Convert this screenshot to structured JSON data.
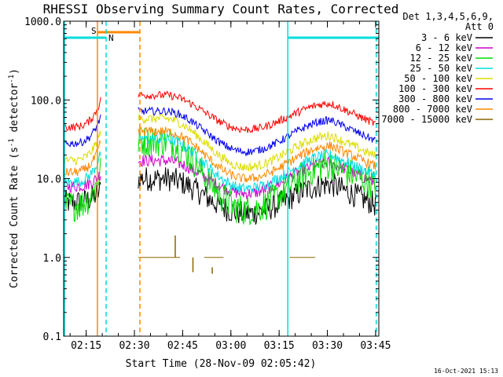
{
  "chart_data": {
    "type": "line",
    "title": "RHESSI Observing Summary Count Rates, Corrected",
    "xlabel": "Start Time (28-Nov-09 02:05:42)",
    "ylabel_main": "Corrected Count Rate (s",
    "ylabel_sup1": "-1",
    "ylabel_mid": " detector",
    "ylabel_sup2": "-1",
    "ylabel_end": ")",
    "yscale": "log",
    "ylim": [
      0.1,
      1000.0
    ],
    "xlim_minutes": [
      2.3,
      100.3
    ],
    "y_ticks": [
      {
        "value": 1000,
        "label": "1000.0"
      },
      {
        "value": 100,
        "label": "100.0"
      },
      {
        "value": 10,
        "label": "10.0"
      },
      {
        "value": 1,
        "label": "1.0"
      },
      {
        "value": 0.1,
        "label": "0.1"
      }
    ],
    "x_ticks": [
      {
        "value": 9.3,
        "label": "02:15"
      },
      {
        "value": 24.3,
        "label": "02:30"
      },
      {
        "value": 39.3,
        "label": "02:45"
      },
      {
        "value": 54.3,
        "label": "03:00"
      },
      {
        "value": 69.3,
        "label": "03:15"
      },
      {
        "value": 84.3,
        "label": "03:30"
      },
      {
        "value": 99.3,
        "label": "03:45"
      }
    ],
    "legend_header": [
      "Det 1,3,4,5,6,9,",
      "Att 0"
    ],
    "legend_position": "right",
    "series": [
      {
        "name": "3 - 6 keV",
        "color": "#000000",
        "pre": [
          5.0,
          7.5
        ],
        "trough": 3.6,
        "peaks": [
          10.0,
          8.5
        ],
        "noise": 0.16
      },
      {
        "name": "6 - 12 keV",
        "color": "#cc00cc",
        "pre": [
          8.0,
          12.0
        ],
        "trough": 6.5,
        "peaks": [
          17.0,
          16.0
        ],
        "noise": 0.08
      },
      {
        "name": "12 - 25 keV",
        "color": "#00dd00",
        "pre": [
          4.5,
          14.0
        ],
        "trough": 4.0,
        "peaks": [
          30.0,
          15.0
        ],
        "noise": 0.2
      },
      {
        "name": "25 - 50 keV",
        "color": "#00dddd",
        "pre": [
          9.0,
          22.0
        ],
        "trough": 7.5,
        "peaks": [
          32.0,
          20.0
        ],
        "noise": 0.07
      },
      {
        "name": "50 - 100 keV",
        "color": "#dddd00",
        "pre": [
          17.0,
          42.0
        ],
        "trough": 14.0,
        "peaks": [
          58.0,
          35.0
        ],
        "noise": 0.06
      },
      {
        "name": "100 - 300 keV",
        "color": "#ff0000",
        "pre": [
          45.0,
          105.0
        ],
        "trough": 42.0,
        "peaks": [
          115.0,
          90.0
        ],
        "noise": 0.05
      },
      {
        "name": "300 - 800 keV",
        "color": "#0000ee",
        "pre": [
          28.0,
          65.0
        ],
        "trough": 22.0,
        "peaks": [
          72.0,
          55.0
        ],
        "noise": 0.05
      },
      {
        "name": "800 - 7000 keV",
        "color": "#ff8800",
        "pre": [
          12.0,
          30.0
        ],
        "trough": 10.0,
        "peaks": [
          40.0,
          26.0
        ],
        "noise": 0.06
      },
      {
        "name": "7000 - 15000 keV",
        "color": "#886600",
        "pre": [],
        "trough": 1.0,
        "peaks": [
          1.0,
          1.0
        ],
        "noise": 0.0
      }
    ],
    "data_segments_minutes": [
      [
        2.3,
        14.0
      ],
      [
        25.5,
        99.3
      ]
    ],
    "background_peaks_minutes": [
      33.5,
      85.5
    ],
    "background_trough_minutes": 59.0,
    "saa_intervals_minutes": [
      [
        12.8,
        26.0
      ]
    ],
    "night_intervals_minutes": [
      [
        2.3,
        15.5
      ],
      [
        72.0,
        100.3
      ]
    ],
    "saa_label": "S",
    "night_label": "N"
  },
  "timestamp": "16-Oct-2021 15:13"
}
